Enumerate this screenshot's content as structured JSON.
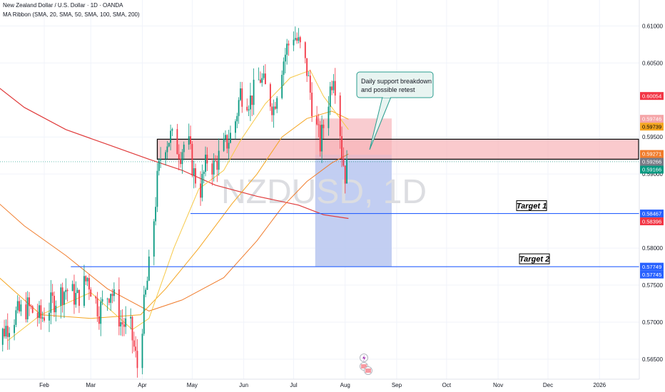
{
  "header": {
    "title": "New Zealand Dollar / U.S. Dollar · 1D · OANDA",
    "indicator": "MA Ribbon (SMA, 20, SMA, 50, SMA, 100, SMA, 200)"
  },
  "watermark": "NZDUSD, 1D",
  "callout": {
    "line1": "Daily support breakdown",
    "line2": "and possible retest"
  },
  "targets": [
    {
      "label": "Target 1",
      "price": 0.58467
    },
    {
      "label": "Target 2",
      "price": 0.57749
    }
  ],
  "colors": {
    "up": "#089981",
    "down": "#f23645",
    "sma20": "#f7c948",
    "sma50": "#f5a623",
    "sma100": "#f07c2c",
    "sma200": "#e03b3b",
    "target_line": "#2962ff",
    "zone_fill": "#f8b3b8",
    "stop_fill": "#f8c3c8",
    "profit_fill": "#b7c6f0"
  },
  "chart_data": {
    "type": "candlestick",
    "symbol": "NZDUSD",
    "timeframe": "1D",
    "ylim": [
      0.5623,
      0.6135
    ],
    "price_ticks": [
      "0.61000",
      "0.60500",
      "0.59500",
      "0.59000",
      "0.58000",
      "0.57500",
      "0.57000",
      "0.56500"
    ],
    "date_ticks": [
      {
        "label": "Feb",
        "day": 32
      },
      {
        "label": "Mar",
        "day": 60
      },
      {
        "label": "Apr",
        "day": 91
      },
      {
        "label": "May",
        "day": 121
      },
      {
        "label": "Jun",
        "day": 152
      },
      {
        "label": "Jul",
        "day": 182
      },
      {
        "label": "Aug",
        "day": 213
      },
      {
        "label": "Sep",
        "day": 244
      },
      {
        "label": "Oct",
        "day": 274
      },
      {
        "label": "Nov",
        "day": 305
      },
      {
        "label": "Dec",
        "day": 335
      },
      {
        "label": "2026",
        "day": 366
      }
    ],
    "price_badges": [
      {
        "text": "0.60054",
        "price": 0.60054,
        "bg": "#f23645",
        "fg": "#ffffff"
      },
      {
        "text": "0.59746",
        "price": 0.59746,
        "bg": "#f5a5a8",
        "fg": "#ffffff"
      },
      {
        "text": "0.59739",
        "price": 0.59739,
        "bg": "#f5a623",
        "fg": "#000000"
      },
      {
        "text": "0.59271",
        "price": 0.59271,
        "bg": "#f07c2c",
        "fg": "#ffffff"
      },
      {
        "text": "0.59266",
        "price": 0.59266,
        "bg": "#787b86",
        "fg": "#ffffff"
      },
      {
        "text": "0.59166",
        "price": 0.59166,
        "bg": "#089981",
        "fg": "#ffffff"
      },
      {
        "text": "0.58467",
        "price": 0.58467,
        "bg": "#2962ff",
        "fg": "#ffffff"
      },
      {
        "text": "0.58396",
        "price": 0.58396,
        "bg": "#f23645",
        "fg": "#ffffff"
      },
      {
        "text": "0.57749",
        "price": 0.57749,
        "bg": "#2962ff",
        "fg": "#ffffff"
      },
      {
        "text": "0.57745",
        "price": 0.57745,
        "bg": "#2962ff",
        "fg": "#ffffff"
      }
    ],
    "support_zone": {
      "top": 0.5947,
      "bottom": 0.592,
      "start_day": 100
    },
    "position": {
      "entry": 0.5926,
      "stop": 0.5975,
      "target": 0.57749,
      "start_day": 195,
      "end_day": 241
    },
    "price_path": [
      [
        0,
        0.5655
      ],
      [
        8,
        0.569
      ],
      [
        15,
        0.571
      ],
      [
        22,
        0.572
      ],
      [
        30,
        0.5705
      ],
      [
        38,
        0.573
      ],
      [
        45,
        0.5745
      ],
      [
        52,
        0.5732
      ],
      [
        58,
        0.576
      ],
      [
        65,
        0.5715
      ],
      [
        72,
        0.5745
      ],
      [
        78,
        0.57
      ],
      [
        84,
        0.569
      ],
      [
        88,
        0.564
      ],
      [
        92,
        0.572
      ],
      [
        96,
        0.579
      ],
      [
        100,
        0.589
      ],
      [
        103,
        0.594
      ],
      [
        108,
        0.595
      ],
      [
        114,
        0.593
      ],
      [
        118,
        0.595
      ],
      [
        122,
        0.59
      ],
      [
        126,
        0.588
      ],
      [
        130,
        0.592
      ],
      [
        134,
        0.591
      ],
      [
        140,
        0.5935
      ],
      [
        146,
        0.596
      ],
      [
        150,
        0.601
      ],
      [
        156,
        0.6
      ],
      [
        162,
        0.603
      ],
      [
        166,
        0.601
      ],
      [
        170,
        0.599
      ],
      [
        174,
        0.604
      ],
      [
        178,
        0.607
      ],
      [
        182,
        0.609
      ],
      [
        186,
        0.607
      ],
      [
        190,
        0.604
      ],
      [
        194,
        0.598
      ],
      [
        198,
        0.594
      ],
      [
        202,
        0.599
      ],
      [
        206,
        0.604
      ],
      [
        209,
        0.599
      ],
      [
        211,
        0.593
      ],
      [
        213,
        0.59
      ],
      [
        215,
        0.5915
      ]
    ],
    "sma20": [
      [
        10,
        0.5675
      ],
      [
        30,
        0.571
      ],
      [
        60,
        0.574
      ],
      [
        85,
        0.569
      ],
      [
        95,
        0.5705
      ],
      [
        110,
        0.58
      ],
      [
        125,
        0.588
      ],
      [
        140,
        0.5905
      ],
      [
        150,
        0.5945
      ],
      [
        165,
        0.5995
      ],
      [
        180,
        0.603
      ],
      [
        192,
        0.604
      ],
      [
        200,
        0.6005
      ],
      [
        210,
        0.5975
      ],
      [
        215,
        0.596
      ]
    ],
    "sma50": [
      [
        5,
        0.576
      ],
      [
        30,
        0.571
      ],
      [
        60,
        0.5705
      ],
      [
        90,
        0.571
      ],
      [
        105,
        0.5745
      ],
      [
        125,
        0.58
      ],
      [
        145,
        0.586
      ],
      [
        160,
        0.59
      ],
      [
        175,
        0.595
      ],
      [
        190,
        0.5975
      ],
      [
        205,
        0.5985
      ],
      [
        215,
        0.5974
      ]
    ],
    "sma100": [
      [
        0,
        0.587
      ],
      [
        20,
        0.583
      ],
      [
        45,
        0.579
      ],
      [
        70,
        0.5745
      ],
      [
        95,
        0.5715
      ],
      [
        115,
        0.573
      ],
      [
        140,
        0.576
      ],
      [
        160,
        0.581
      ],
      [
        175,
        0.5855
      ],
      [
        190,
        0.589
      ],
      [
        205,
        0.5915
      ],
      [
        215,
        0.5927
      ]
    ],
    "sma200": [
      [
        0,
        0.6025
      ],
      [
        20,
        0.599
      ],
      [
        45,
        0.596
      ],
      [
        70,
        0.594
      ],
      [
        95,
        0.592
      ],
      [
        115,
        0.5905
      ],
      [
        135,
        0.5885
      ],
      [
        160,
        0.587
      ],
      [
        185,
        0.5858
      ],
      [
        200,
        0.5845
      ],
      [
        215,
        0.584
      ]
    ]
  }
}
